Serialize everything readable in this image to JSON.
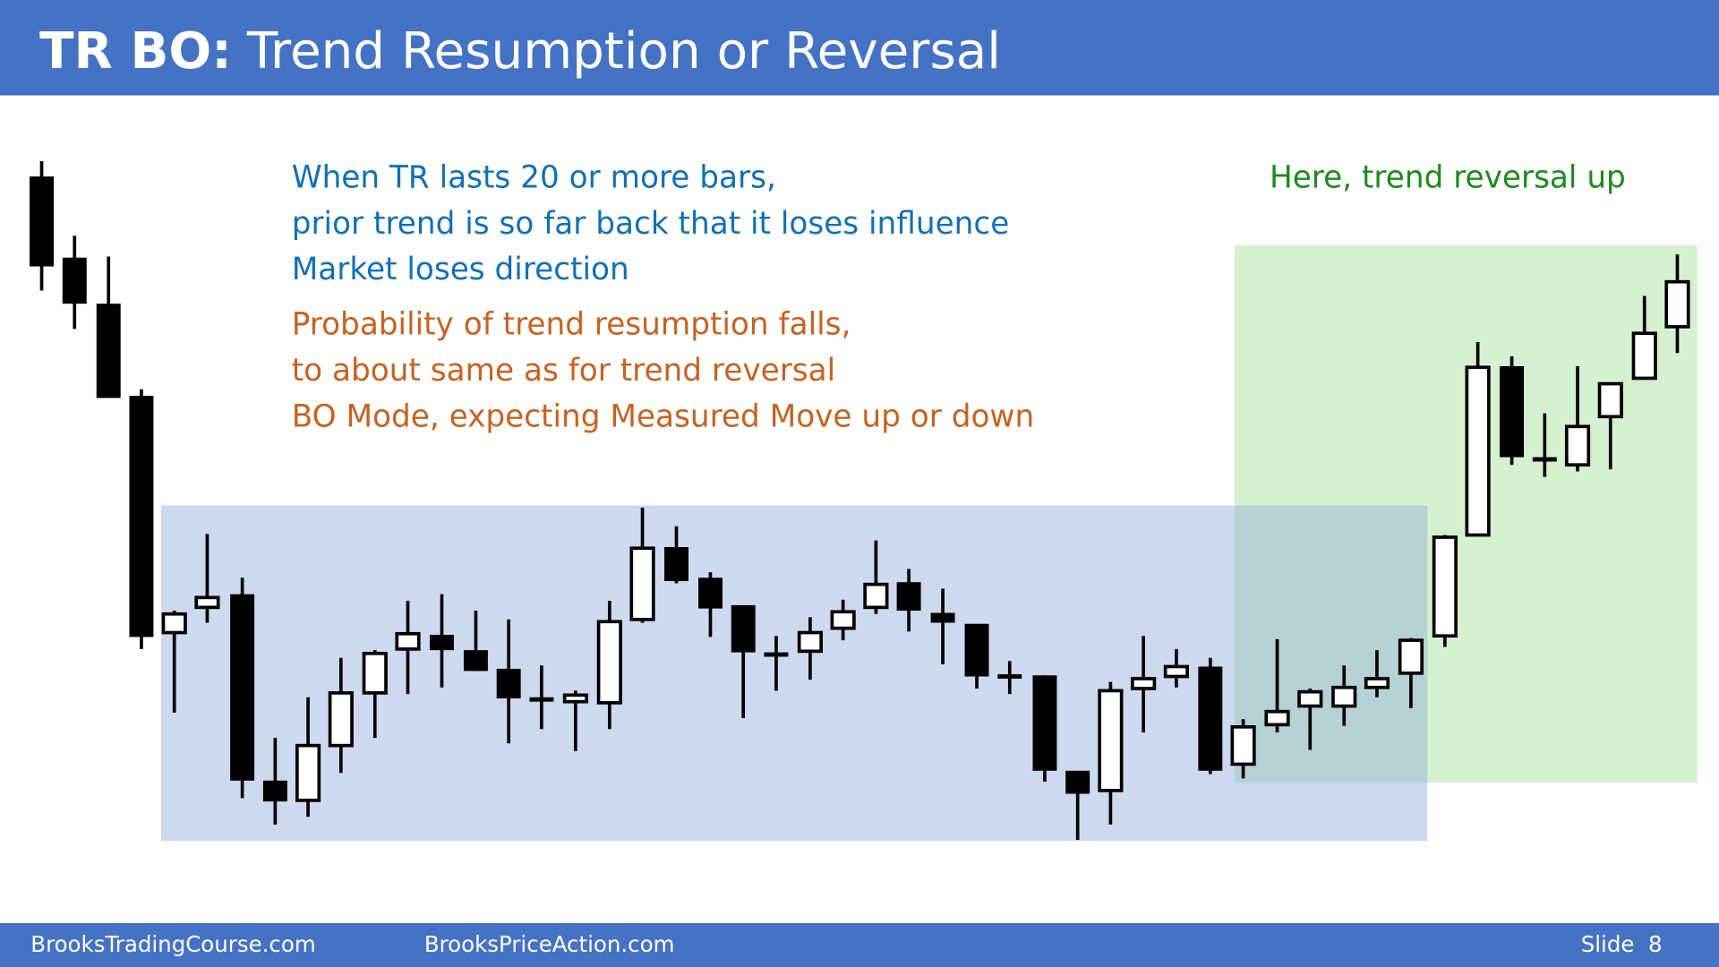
{
  "header": {
    "title_prefix": "TR BO:",
    "title": "Trend Resumption or Reversal"
  },
  "blue_text": [
    "When TR lasts 20 or more bars,",
    "prior trend is so far back that it loses influence",
    "Market loses direction"
  ],
  "orange_text": [
    "Probability of trend resumption falls,",
    "to about same as for trend reversal",
    "BO Mode, expecting Measured Move up or down"
  ],
  "green_note": "Here, trend reversal up",
  "footer": {
    "left": "BrooksTradingCourse.com",
    "middle": "BrooksPriceAction.com",
    "slide": "Slide  8"
  }
}
